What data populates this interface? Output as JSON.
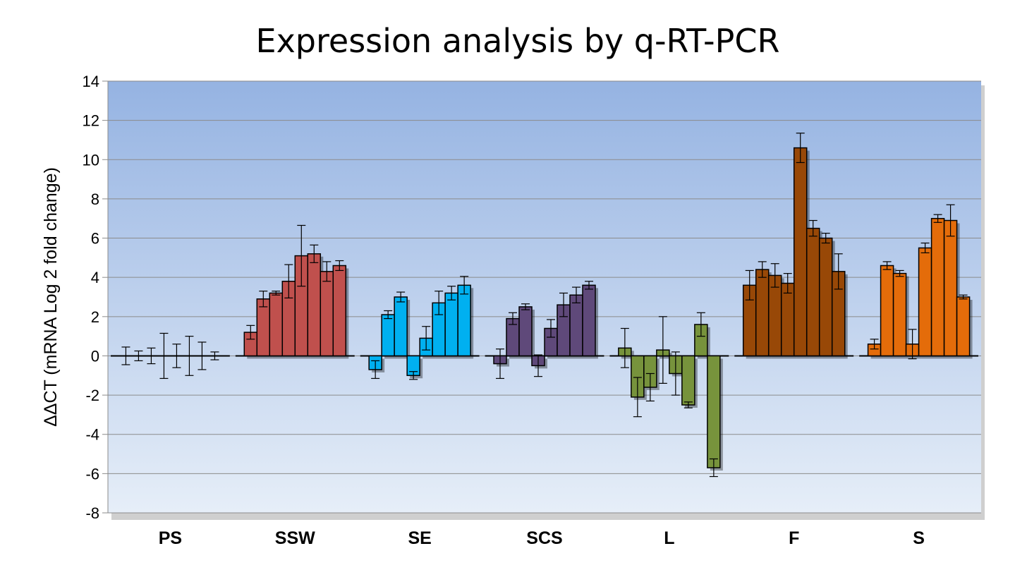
{
  "chart_data": {
    "type": "bar",
    "title": "Expression analysis by q-RT-PCR",
    "ylabel": "ΔΔCT (mRNA Log 2 fold change)",
    "ylim": [
      -8,
      14
    ],
    "yticks": [
      "14",
      "12",
      "10",
      "8",
      "6",
      "4",
      "2",
      "0",
      "-2",
      "-4",
      "-6",
      "-8"
    ],
    "grid": true,
    "legend": "none",
    "groups": [
      {
        "name": "PS",
        "color": "#ffffff",
        "values": [
          0,
          0,
          0,
          0,
          0,
          0,
          0,
          0
        ],
        "errors": [
          0.45,
          0.25,
          0.4,
          1.15,
          0.6,
          1.0,
          0.7,
          0.2
        ]
      },
      {
        "name": "SSW",
        "color": "#C0504D",
        "values": [
          1.2,
          2.9,
          3.2,
          3.8,
          5.1,
          5.2,
          4.3,
          4.6
        ],
        "errors": [
          0.35,
          0.4,
          0.1,
          0.85,
          1.55,
          0.45,
          0.5,
          0.25
        ]
      },
      {
        "name": "SE",
        "color": "#00B0F0",
        "values": [
          -0.7,
          2.1,
          3.0,
          -1.0,
          0.9,
          2.7,
          3.2,
          3.6
        ],
        "errors": [
          0.45,
          0.2,
          0.25,
          0.2,
          0.6,
          0.6,
          0.35,
          0.45
        ]
      },
      {
        "name": "SCS",
        "color": "#5F497A",
        "values": [
          -0.4,
          1.9,
          2.5,
          -0.5,
          1.4,
          2.6,
          3.1,
          3.6
        ],
        "errors": [
          0.75,
          0.3,
          0.15,
          0.55,
          0.45,
          0.6,
          0.4,
          0.2
        ]
      },
      {
        "name": "L",
        "color": "#77933C",
        "values": [
          0.4,
          -2.1,
          -1.6,
          0.3,
          -0.9,
          -2.5,
          1.6,
          -5.7
        ],
        "errors": [
          1.0,
          1.0,
          0.7,
          1.7,
          1.1,
          0.15,
          0.6,
          0.45
        ]
      },
      {
        "name": "F",
        "color": "#984807",
        "values": [
          3.6,
          4.4,
          4.1,
          3.7,
          10.6,
          6.5,
          6.0,
          4.3
        ],
        "errors": [
          0.75,
          0.4,
          0.6,
          0.5,
          0.75,
          0.4,
          0.25,
          0.9
        ]
      },
      {
        "name": "S",
        "color": "#E46C0A",
        "values": [
          0.6,
          4.6,
          4.2,
          0.6,
          5.5,
          7.0,
          6.9,
          3.0
        ],
        "errors": [
          0.25,
          0.2,
          0.15,
          0.75,
          0.25,
          0.2,
          0.8,
          0.1
        ]
      }
    ]
  }
}
